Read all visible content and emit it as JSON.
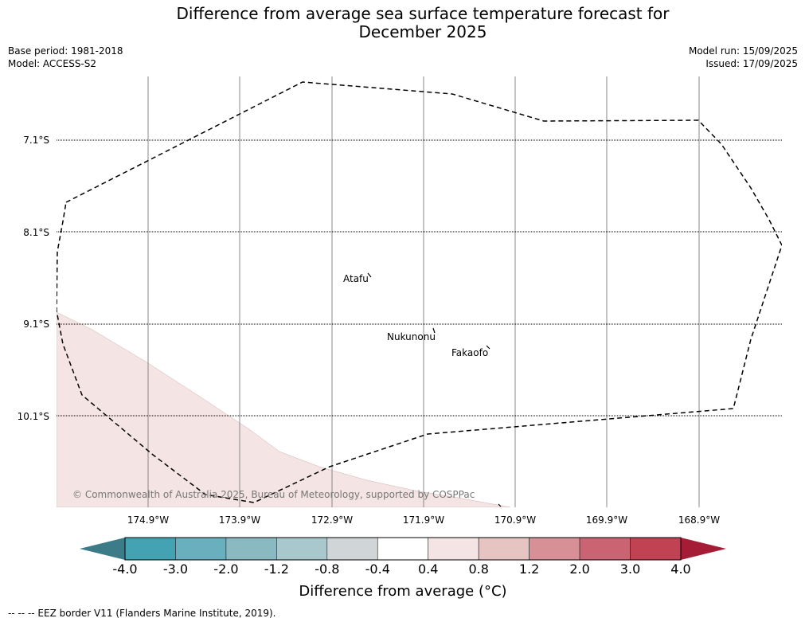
{
  "header": {
    "title": "Difference from average sea surface temperature forecast for\nDecember 2025",
    "base_period": "Base period: 1981-2018",
    "model": "Model: ACCESS-S2",
    "model_run": "Model run: 15/09/2025",
    "issued": "Issued: 17/09/2025"
  },
  "map": {
    "latitude_labels": [
      "7.1°S",
      "8.1°S",
      "9.1°S",
      "10.1°S"
    ],
    "longitude_labels": [
      "174.9°W",
      "173.9°W",
      "172.9°W",
      "171.9°W",
      "170.9°W",
      "169.9°W",
      "168.9°W"
    ],
    "places": [
      "Atafu",
      "Nukunonu",
      "Fakaofo"
    ],
    "copyright": "© Commonwealth of Australia 2025, Bureau of Meteorology, supported by COSPPac",
    "anomaly_region_color": "#f4e4e4",
    "eez_border_style": "dashed"
  },
  "colorbar": {
    "ticks": [
      "-4.0",
      "-3.0",
      "-2.0",
      "-1.2",
      "-0.8",
      "-0.4",
      "0.4",
      "0.8",
      "1.2",
      "2.0",
      "3.0",
      "4.0"
    ],
    "colors": [
      "#44a3b3",
      "#6aafbd",
      "#8bb9c2",
      "#a9c8cd",
      "#d0d6d8",
      "#ffffff",
      "#f4e4e4",
      "#e6c4c1",
      "#d69096",
      "#cb6472",
      "#c04253"
    ],
    "under_color": "#3b7c88",
    "over_color": "#a51c36",
    "label": "Difference from average (°C)"
  },
  "legend": {
    "footnote": "--  --  -- EEZ border V11 (Flanders Marine Institute, 2019)."
  }
}
